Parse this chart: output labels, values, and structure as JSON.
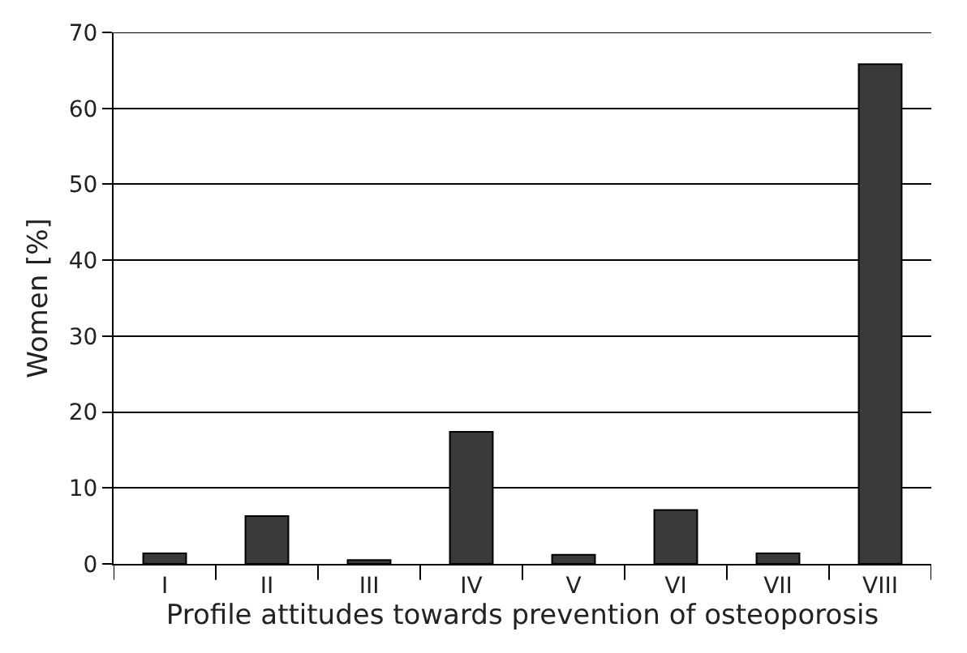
{
  "chart_data": {
    "type": "bar",
    "xlabel": "Profile attitudes towards prevention of osteoporosis",
    "ylabel": "Women [%]",
    "categories": [
      "I",
      "II",
      "III",
      "IV",
      "V",
      "VI",
      "VII",
      "VIII"
    ],
    "values": [
      1.4,
      6.3,
      0.5,
      17.4,
      1.2,
      7.1,
      1.4,
      65.8
    ],
    "color": "#3a3a3a",
    "ylim": [
      0,
      70
    ],
    "yticks": [
      0,
      10,
      20,
      30,
      40,
      50,
      60,
      70
    ],
    "grid": "y"
  }
}
